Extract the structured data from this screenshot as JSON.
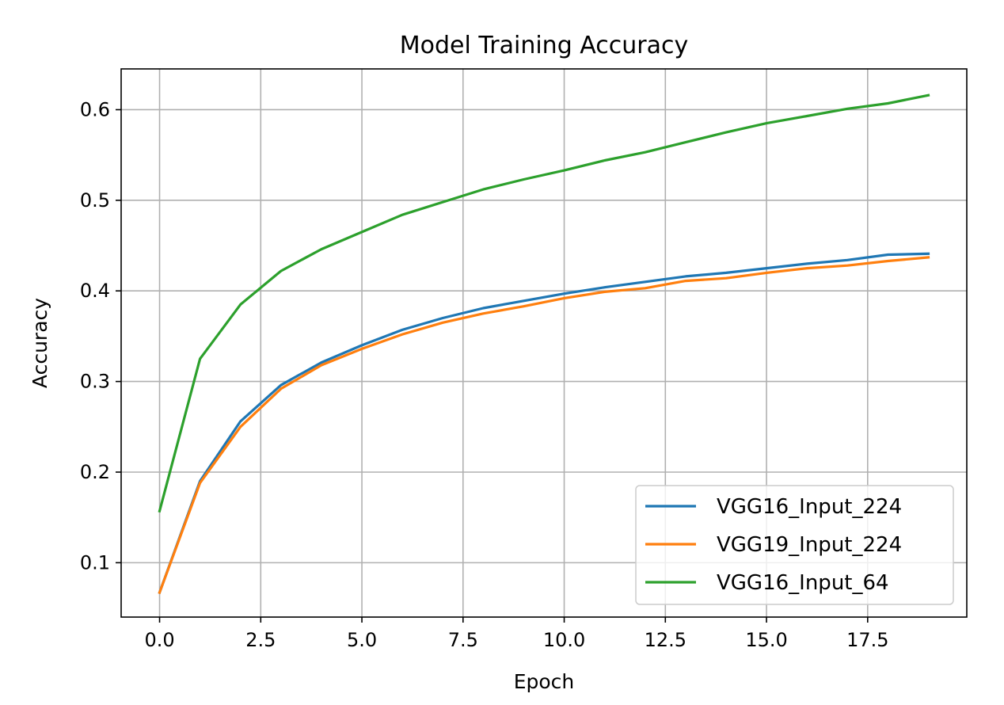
{
  "chart_data": {
    "type": "line",
    "title": "Model Training Accuracy",
    "xlabel": "Epoch",
    "ylabel": "Accuracy",
    "xlim": [
      -0.95,
      19.95
    ],
    "ylim": [
      0.04,
      0.645
    ],
    "xticks": [
      0.0,
      2.5,
      5.0,
      7.5,
      10.0,
      12.5,
      15.0,
      17.5
    ],
    "xtick_labels": [
      "0.0",
      "2.5",
      "5.0",
      "7.5",
      "10.0",
      "12.5",
      "15.0",
      "17.5"
    ],
    "yticks": [
      0.1,
      0.2,
      0.3,
      0.4,
      0.5,
      0.6
    ],
    "ytick_labels": [
      "0.1",
      "0.2",
      "0.3",
      "0.4",
      "0.5",
      "0.6"
    ],
    "grid": true,
    "legend_position": "lower-right",
    "x": [
      0,
      1,
      2,
      3,
      4,
      5,
      6,
      7,
      8,
      9,
      10,
      11,
      12,
      13,
      14,
      15,
      16,
      17,
      18,
      19
    ],
    "series": [
      {
        "name": "VGG16_Input_224",
        "color": "#1f77b4",
        "values": [
          0.067,
          0.19,
          0.256,
          0.296,
          0.321,
          0.34,
          0.357,
          0.37,
          0.381,
          0.389,
          0.397,
          0.404,
          0.41,
          0.416,
          0.42,
          0.425,
          0.43,
          0.434,
          0.44,
          0.441
        ]
      },
      {
        "name": "VGG19_Input_224",
        "color": "#ff7f0e",
        "values": [
          0.067,
          0.188,
          0.25,
          0.292,
          0.318,
          0.336,
          0.352,
          0.365,
          0.375,
          0.383,
          0.392,
          0.399,
          0.403,
          0.411,
          0.414,
          0.42,
          0.425,
          0.428,
          0.433,
          0.437
        ]
      },
      {
        "name": "VGG16_Input_64",
        "color": "#2ca02c",
        "values": [
          0.157,
          0.325,
          0.385,
          0.422,
          0.446,
          0.465,
          0.484,
          0.498,
          0.512,
          0.523,
          0.533,
          0.544,
          0.553,
          0.564,
          0.575,
          0.585,
          0.593,
          0.601,
          0.607,
          0.616
        ]
      }
    ]
  }
}
